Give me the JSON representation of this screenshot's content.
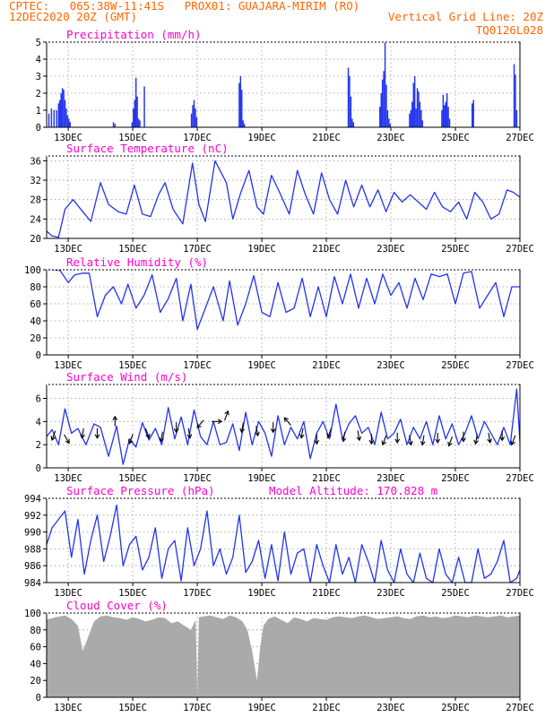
{
  "header": {
    "line1_left": "CPTEC:   065:38W-11:41S   PROX01: GUAJARA-MIRIM (RO)",
    "line2_left": "12DEC2020 20Z (GMT)",
    "line2_right": "Vertical Grid Line: 20Z",
    "line3_right": "TQ0126L028"
  },
  "colors": {
    "header": "#ff6600",
    "title": "#ff00cc",
    "series": "#2233ee",
    "cloud": "#aaaaaa",
    "arrow": "#000000"
  },
  "chart_data": [
    {
      "id": "precip",
      "type": "bar",
      "title": "Precipitation (mm/h)",
      "xlim": [
        12.33,
        27.0
      ],
      "ylim": [
        0,
        5
      ],
      "yticks": [
        0,
        1,
        2,
        3,
        4,
        5
      ],
      "xticks": [
        13,
        15,
        17,
        19,
        21,
        23,
        25,
        27
      ],
      "xtick_labels": [
        "13DEC",
        "15DEC",
        "17DEC",
        "19DEC",
        "21DEC",
        "23DEC",
        "25DEC",
        "27DEC"
      ],
      "bar_width": 0.04,
      "x": [
        12.4,
        12.48,
        12.56,
        12.64,
        12.7,
        12.74,
        12.78,
        12.82,
        12.86,
        12.9,
        12.94,
        12.98,
        13.02,
        13.06,
        14.4,
        14.45,
        14.98,
        15.02,
        15.06,
        15.1,
        15.14,
        15.18,
        15.22,
        15.36,
        16.82,
        16.86,
        16.9,
        16.94,
        16.98,
        18.3,
        18.34,
        18.38,
        18.42,
        18.46,
        21.68,
        21.72,
        21.76,
        21.8,
        21.84,
        22.66,
        22.7,
        22.74,
        22.78,
        22.82,
        22.86,
        22.9,
        22.94,
        22.98,
        23.58,
        23.62,
        23.66,
        23.7,
        23.74,
        23.78,
        23.82,
        23.86,
        23.9,
        23.94,
        23.98,
        24.58,
        24.62,
        24.66,
        24.7,
        24.74,
        24.78,
        24.82,
        25.52,
        25.56,
        26.82,
        26.86,
        26.9
      ],
      "values": [
        0.8,
        1.1,
        1.0,
        1.0,
        1.4,
        1.6,
        2.0,
        2.3,
        2.2,
        1.6,
        1.1,
        0.7,
        0.5,
        0.3,
        0.3,
        0.2,
        0.3,
        1.1,
        1.6,
        2.9,
        1.8,
        0.5,
        0.4,
        2.4,
        0.8,
        1.3,
        1.6,
        1.1,
        0.6,
        2.6,
        3.0,
        2.2,
        0.4,
        0.2,
        3.5,
        3.0,
        1.8,
        0.5,
        0.3,
        1.2,
        2.0,
        2.8,
        3.3,
        5.0,
        2.5,
        1.0,
        0.5,
        0.2,
        0.8,
        1.0,
        1.5,
        2.6,
        3.0,
        1.1,
        2.3,
        2.1,
        1.5,
        1.0,
        0.4,
        1.0,
        1.9,
        1.3,
        1.5,
        2.0,
        1.2,
        0.5,
        1.4,
        1.6,
        3.7,
        3.1,
        1.0
      ]
    },
    {
      "id": "temp",
      "type": "line",
      "title": "Surface Temperature (nC)",
      "xlim": [
        12.33,
        27.0
      ],
      "ylim": [
        20,
        37
      ],
      "yticks": [
        20,
        24,
        28,
        32,
        36
      ],
      "xticks": [
        13,
        15,
        17,
        19,
        21,
        23,
        25,
        27
      ],
      "xtick_labels": [
        "13DEC",
        "15DEC",
        "17DEC",
        "19DEC",
        "21DEC",
        "23DEC",
        "25DEC",
        "27DEC"
      ],
      "x": [
        12.33,
        12.5,
        12.7,
        12.9,
        13.15,
        13.45,
        13.7,
        14.0,
        14.25,
        14.55,
        14.8,
        15.05,
        15.3,
        15.55,
        15.8,
        16.0,
        16.25,
        16.55,
        16.85,
        17.05,
        17.25,
        17.55,
        17.9,
        18.1,
        18.35,
        18.6,
        18.85,
        19.05,
        19.3,
        19.55,
        19.85,
        20.1,
        20.35,
        20.6,
        20.85,
        21.1,
        21.35,
        21.6,
        21.85,
        22.1,
        22.35,
        22.6,
        22.85,
        23.1,
        23.35,
        23.6,
        23.85,
        24.1,
        24.35,
        24.6,
        24.85,
        25.1,
        25.35,
        25.6,
        25.85,
        26.1,
        26.35,
        26.6,
        26.8,
        27.0
      ],
      "values": [
        21.5,
        20.5,
        20.2,
        26.0,
        28.0,
        25.5,
        23.5,
        31.5,
        27.0,
        25.5,
        25.0,
        31.0,
        25.0,
        24.5,
        29.0,
        31.5,
        26.0,
        23.0,
        35.5,
        27.0,
        23.5,
        36.0,
        31.5,
        24.0,
        29.5,
        34.0,
        26.5,
        25.0,
        33.0,
        29.5,
        25.0,
        34.0,
        29.0,
        25.0,
        33.5,
        28.0,
        25.0,
        32.0,
        26.5,
        31.0,
        26.5,
        30.0,
        25.5,
        29.5,
        27.5,
        29.0,
        27.5,
        26.0,
        29.5,
        26.5,
        25.5,
        27.5,
        24.0,
        29.5,
        27.5,
        24.0,
        25.0,
        30.0,
        29.5,
        28.5
      ]
    },
    {
      "id": "rh",
      "type": "line",
      "title": "Relative Humidity (%)",
      "xlim": [
        12.33,
        27.0
      ],
      "ylim": [
        0,
        100
      ],
      "yticks": [
        0,
        20,
        40,
        60,
        80,
        100
      ],
      "xticks": [
        13,
        15,
        17,
        19,
        21,
        23,
        25,
        27
      ],
      "xtick_labels": [
        "13DEC",
        "15DEC",
        "17DEC",
        "19DEC",
        "21DEC",
        "23DEC",
        "25DEC",
        "27DEC"
      ],
      "x": [
        12.33,
        12.5,
        12.75,
        13.0,
        13.2,
        13.45,
        13.65,
        13.9,
        14.15,
        14.4,
        14.65,
        14.85,
        15.1,
        15.35,
        15.6,
        15.85,
        16.1,
        16.35,
        16.55,
        16.8,
        17.0,
        17.25,
        17.5,
        17.8,
        18.0,
        18.25,
        18.5,
        18.75,
        19.0,
        19.25,
        19.5,
        19.75,
        20.0,
        20.25,
        20.5,
        20.75,
        21.0,
        21.25,
        21.5,
        21.75,
        22.0,
        22.25,
        22.5,
        22.75,
        23.0,
        23.25,
        23.5,
        23.75,
        24.0,
        24.25,
        24.5,
        24.75,
        25.0,
        25.25,
        25.5,
        25.75,
        26.0,
        26.25,
        26.5,
        26.75,
        27.0
      ],
      "values": [
        100,
        100,
        99,
        85,
        94,
        96,
        96,
        45,
        70,
        80,
        60,
        83,
        55,
        70,
        94,
        50,
        66,
        90,
        40,
        83,
        30,
        55,
        80,
        40,
        87,
        35,
        60,
        93,
        50,
        45,
        85,
        50,
        55,
        90,
        45,
        80,
        45,
        92,
        60,
        95,
        55,
        90,
        60,
        95,
        70,
        85,
        55,
        90,
        65,
        95,
        92,
        95,
        60,
        96,
        98,
        55,
        70,
        85,
        45,
        80,
        80
      ]
    },
    {
      "id": "wind",
      "type": "line",
      "title": "Surface Wind (m/s)",
      "xlim": [
        12.33,
        27.0
      ],
      "ylim": [
        0,
        7.2
      ],
      "yticks": [
        0,
        2,
        4,
        6
      ],
      "xticks": [
        13,
        15,
        17,
        19,
        21,
        23,
        25,
        27
      ],
      "xtick_labels": [
        "13DEC",
        "15DEC",
        "17DEC",
        "19DEC",
        "21DEC",
        "23DEC",
        "25DEC",
        "27DEC"
      ],
      "x": [
        12.33,
        12.5,
        12.7,
        12.9,
        13.1,
        13.3,
        13.55,
        13.8,
        14.0,
        14.25,
        14.5,
        14.7,
        14.9,
        15.1,
        15.3,
        15.5,
        15.7,
        15.9,
        16.1,
        16.3,
        16.5,
        16.7,
        16.9,
        17.1,
        17.3,
        17.5,
        17.7,
        17.9,
        18.1,
        18.3,
        18.5,
        18.7,
        18.9,
        19.1,
        19.3,
        19.5,
        19.7,
        19.9,
        20.1,
        20.3,
        20.5,
        20.7,
        20.9,
        21.1,
        21.3,
        21.5,
        21.7,
        21.9,
        22.1,
        22.3,
        22.5,
        22.7,
        22.9,
        23.1,
        23.3,
        23.5,
        23.7,
        23.9,
        24.1,
        24.3,
        24.5,
        24.7,
        24.9,
        25.1,
        25.3,
        25.5,
        25.7,
        25.9,
        26.1,
        26.3,
        26.5,
        26.7,
        26.9,
        27.0
      ],
      "values": [
        2.7,
        3.3,
        2.0,
        5.1,
        3.0,
        3.4,
        2.0,
        3.8,
        3.5,
        1.0,
        3.6,
        0.3,
        2.5,
        1.8,
        3.9,
        2.4,
        3.4,
        2.0,
        5.2,
        2.5,
        4.4,
        2.0,
        5.0,
        2.7,
        2.0,
        4.0,
        2.0,
        2.2,
        3.8,
        1.5,
        4.8,
        2.0,
        4.0,
        3.0,
        1.0,
        4.5,
        2.0,
        3.5,
        2.5,
        4.0,
        0.8,
        3.0,
        4.0,
        2.5,
        5.5,
        2.5,
        3.8,
        4.5,
        3.0,
        3.5,
        2.0,
        4.8,
        2.5,
        3.0,
        4.2,
        2.0,
        3.5,
        2.5,
        4.0,
        2.0,
        4.5,
        2.5,
        3.8,
        2.0,
        3.0,
        4.5,
        2.5,
        4.0,
        3.0,
        2.0,
        3.5,
        2.0,
        6.8,
        2.2
      ],
      "arrows": {
        "x": [
          12.55,
          12.95,
          13.45,
          13.9,
          14.45,
          14.95,
          15.45,
          15.9,
          16.35,
          16.75,
          17.1,
          17.6,
          17.9,
          18.4,
          18.85,
          19.35,
          19.8,
          20.25,
          20.7,
          21.1,
          21.55,
          22.0,
          22.4,
          22.8,
          23.2,
          23.6,
          24.0,
          24.45,
          24.85,
          25.25,
          25.65,
          26.05,
          26.45,
          26.8
        ],
        "y": [
          2.8,
          2.5,
          3.0,
          3.0,
          4.0,
          2.5,
          3.0,
          2.7,
          3.5,
          3.0,
          3.8,
          4.0,
          4.5,
          3.5,
          3.2,
          3.5,
          4.0,
          3.0,
          2.5,
          3.0,
          2.7,
          2.8,
          2.5,
          2.4,
          2.6,
          2.4,
          2.4,
          2.6,
          2.3,
          2.7,
          2.5,
          2.6,
          2.8,
          2.4
        ],
        "dir_deg": [
          200,
          150,
          190,
          180,
          0,
          200,
          160,
          190,
          180,
          170,
          220,
          90,
          20,
          190,
          170,
          180,
          320,
          190,
          180,
          200,
          190,
          170,
          180,
          200,
          180,
          170,
          190,
          180,
          200,
          180,
          190,
          170,
          180,
          200
        ]
      }
    },
    {
      "id": "pressure",
      "type": "line",
      "title": "Surface Pressure (hPa)",
      "annotation": "Model Altitude: 170.828 m",
      "xlim": [
        12.33,
        27.0
      ],
      "ylim": [
        984,
        994
      ],
      "yticks": [
        984,
        986,
        988,
        990,
        992,
        994
      ],
      "xticks": [
        13,
        15,
        17,
        19,
        21,
        23,
        25,
        27
      ],
      "xtick_labels": [
        "13DEC",
        "15DEC",
        "17DEC",
        "19DEC",
        "21DEC",
        "23DEC",
        "25DEC",
        "27DEC"
      ],
      "x": [
        12.33,
        12.5,
        12.7,
        12.9,
        13.1,
        13.3,
        13.5,
        13.7,
        13.9,
        14.1,
        14.3,
        14.5,
        14.7,
        14.9,
        15.1,
        15.3,
        15.5,
        15.7,
        15.9,
        16.1,
        16.3,
        16.5,
        16.7,
        16.9,
        17.1,
        17.3,
        17.5,
        17.7,
        17.9,
        18.1,
        18.3,
        18.5,
        18.7,
        18.9,
        19.1,
        19.3,
        19.5,
        19.7,
        19.9,
        20.1,
        20.3,
        20.5,
        20.7,
        20.9,
        21.1,
        21.3,
        21.5,
        21.7,
        21.9,
        22.1,
        22.3,
        22.5,
        22.7,
        22.9,
        23.1,
        23.3,
        23.5,
        23.7,
        23.9,
        24.1,
        24.3,
        24.5,
        24.7,
        24.9,
        25.1,
        25.3,
        25.5,
        25.7,
        25.9,
        26.1,
        26.3,
        26.5,
        26.7,
        26.9,
        27.0
      ],
      "values": [
        988.5,
        990.5,
        991.5,
        992.5,
        987.0,
        991.5,
        985.0,
        989.0,
        992.0,
        986.5,
        989.5,
        993.2,
        986.0,
        988.5,
        989.5,
        985.5,
        987.0,
        990.5,
        984.5,
        988.0,
        989.0,
        984.2,
        990.5,
        986.0,
        988.0,
        992.5,
        986.0,
        988.0,
        985.0,
        987.0,
        992.0,
        985.2,
        986.5,
        989.0,
        984.5,
        988.5,
        984.2,
        990.0,
        985.0,
        987.5,
        988.0,
        984.0,
        988.5,
        986.0,
        984.0,
        988.5,
        985.0,
        987.0,
        984.0,
        988.5,
        986.5,
        984.0,
        989.0,
        985.5,
        984.0,
        988.0,
        985.0,
        984.0,
        987.5,
        984.5,
        984.0,
        988.0,
        985.0,
        984.0,
        987.0,
        984.0,
        984.0,
        988.0,
        984.5,
        985.0,
        986.5,
        989.0,
        984.0,
        984.5,
        985.5
      ]
    },
    {
      "id": "cloud",
      "type": "area",
      "title": "Cloud Cover (%)",
      "xlim": [
        12.33,
        27.0
      ],
      "ylim": [
        0,
        100
      ],
      "yticks": [
        0,
        20,
        40,
        60,
        80,
        100
      ],
      "xticks": [
        13,
        15,
        17,
        19,
        21,
        23,
        25,
        27
      ],
      "xtick_labels": [
        "13DEC",
        "15DEC",
        "17DEC",
        "19DEC",
        "21DEC",
        "23DEC",
        "25DEC",
        "27DEC"
      ],
      "x": [
        12.33,
        12.6,
        12.9,
        13.1,
        13.3,
        13.45,
        13.6,
        13.8,
        14.0,
        14.2,
        14.4,
        14.6,
        14.8,
        15.0,
        15.2,
        15.4,
        15.6,
        15.8,
        16.0,
        16.2,
        16.4,
        16.6,
        16.8,
        16.95,
        17.0,
        17.05,
        17.2,
        17.4,
        17.6,
        17.8,
        18.0,
        18.2,
        18.4,
        18.55,
        18.7,
        18.85,
        18.95,
        19.05,
        19.2,
        19.4,
        19.6,
        19.8,
        20.0,
        20.2,
        20.4,
        20.6,
        20.8,
        21.0,
        21.2,
        21.4,
        21.6,
        21.8,
        22.0,
        22.2,
        22.4,
        22.6,
        22.8,
        23.0,
        23.2,
        23.4,
        23.6,
        23.8,
        24.0,
        24.2,
        24.4,
        24.6,
        24.8,
        25.0,
        25.2,
        25.4,
        25.6,
        25.8,
        26.0,
        26.2,
        26.4,
        26.6,
        26.8,
        27.0
      ],
      "values": [
        92,
        95,
        97,
        93,
        85,
        55,
        70,
        90,
        96,
        97,
        95,
        94,
        92,
        95,
        93,
        90,
        92,
        95,
        94,
        88,
        90,
        85,
        80,
        92,
        2,
        95,
        96,
        97,
        95,
        93,
        97,
        95,
        90,
        80,
        55,
        20,
        60,
        85,
        93,
        96,
        92,
        88,
        95,
        93,
        90,
        94,
        93,
        92,
        95,
        96,
        95,
        94,
        96,
        97,
        95,
        93,
        94,
        95,
        96,
        94,
        93,
        96,
        97,
        95,
        96,
        94,
        95,
        97,
        96,
        95,
        97,
        96,
        95,
        96,
        97,
        95,
        96,
        97
      ]
    }
  ]
}
